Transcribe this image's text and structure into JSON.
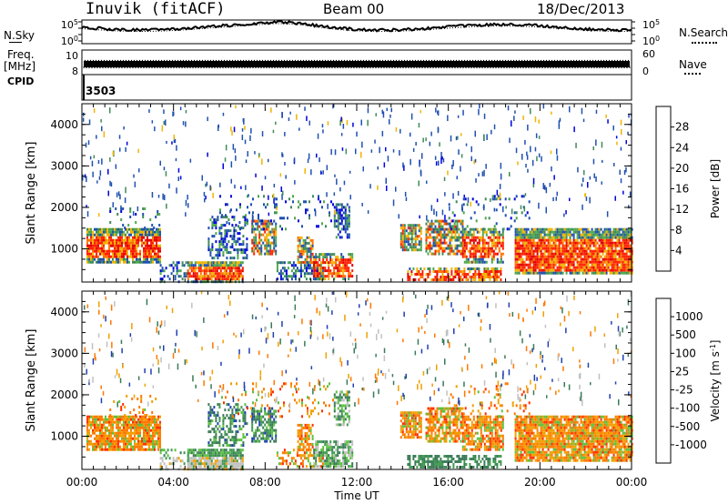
{
  "header": {
    "station": "Inuvik (fitACF)",
    "beam": "Beam 00",
    "date": "18/Dec/2013"
  },
  "side_labels": {
    "nsky": "N.Sky",
    "nsearch": "N.Search",
    "freq": "Freq.",
    "freq_unit": "[MHz]",
    "cpid": "CPID",
    "nave": "Nave",
    "cpid_value": "3503"
  },
  "chart_data": [
    {
      "type": "line",
      "name": "noise",
      "left_ticks": [
        "10^5",
        "10^0"
      ],
      "right_ticks": [
        "10^5",
        "10^0"
      ],
      "series": [
        {
          "name": "N.Sky"
        },
        {
          "name": "N.Search"
        }
      ]
    },
    {
      "type": "line",
      "name": "frequency-nave",
      "left_ticks": [
        "10",
        "8"
      ],
      "right_ticks": [
        "60",
        "0"
      ],
      "series": [
        {
          "name": "Freq."
        },
        {
          "name": "Nave"
        }
      ]
    },
    {
      "type": "heatmap",
      "name": "power",
      "ylabel": "Slant Range [km]",
      "ylim": [
        200,
        4500
      ],
      "yticks": [
        1000,
        2000,
        3000,
        4000
      ],
      "xlim": [
        0,
        24
      ],
      "colorbar_label": "Power [dB]",
      "colorbar_ticks": [
        "28",
        "24",
        "20",
        "16",
        "12",
        "8",
        "4"
      ],
      "colors": [
        "#0000e0",
        "#2050b0",
        "#3f8a58",
        "#4ca84c",
        "#f0b400",
        "#ff7000",
        "#ff2000",
        "#e00000"
      ]
    },
    {
      "type": "heatmap",
      "name": "velocity",
      "ylabel": "Slant Range [km]",
      "ylim": [
        200,
        4500
      ],
      "yticks": [
        1000,
        2000,
        3000,
        4000
      ],
      "xlim": [
        0,
        24
      ],
      "colorbar_label": "Velocity [m s",
      "colorbar_unit_sup": "-1",
      "colorbar_ticks": [
        "1000",
        "500",
        "100",
        "25",
        "-25",
        "-100",
        "-500",
        "-1000"
      ],
      "colors": [
        "#2040b0",
        "#3a7a58",
        "#3f9a50",
        "#5cc040",
        "#c0c0c0",
        "#f0a000",
        "#ff7800",
        "#ff3000",
        "#e00000"
      ],
      "xticks": [
        "00:00",
        "04:00",
        "08:00",
        "12:00",
        "16:00",
        "20:00",
        "00:00"
      ],
      "xlabel": "Time UT"
    }
  ]
}
